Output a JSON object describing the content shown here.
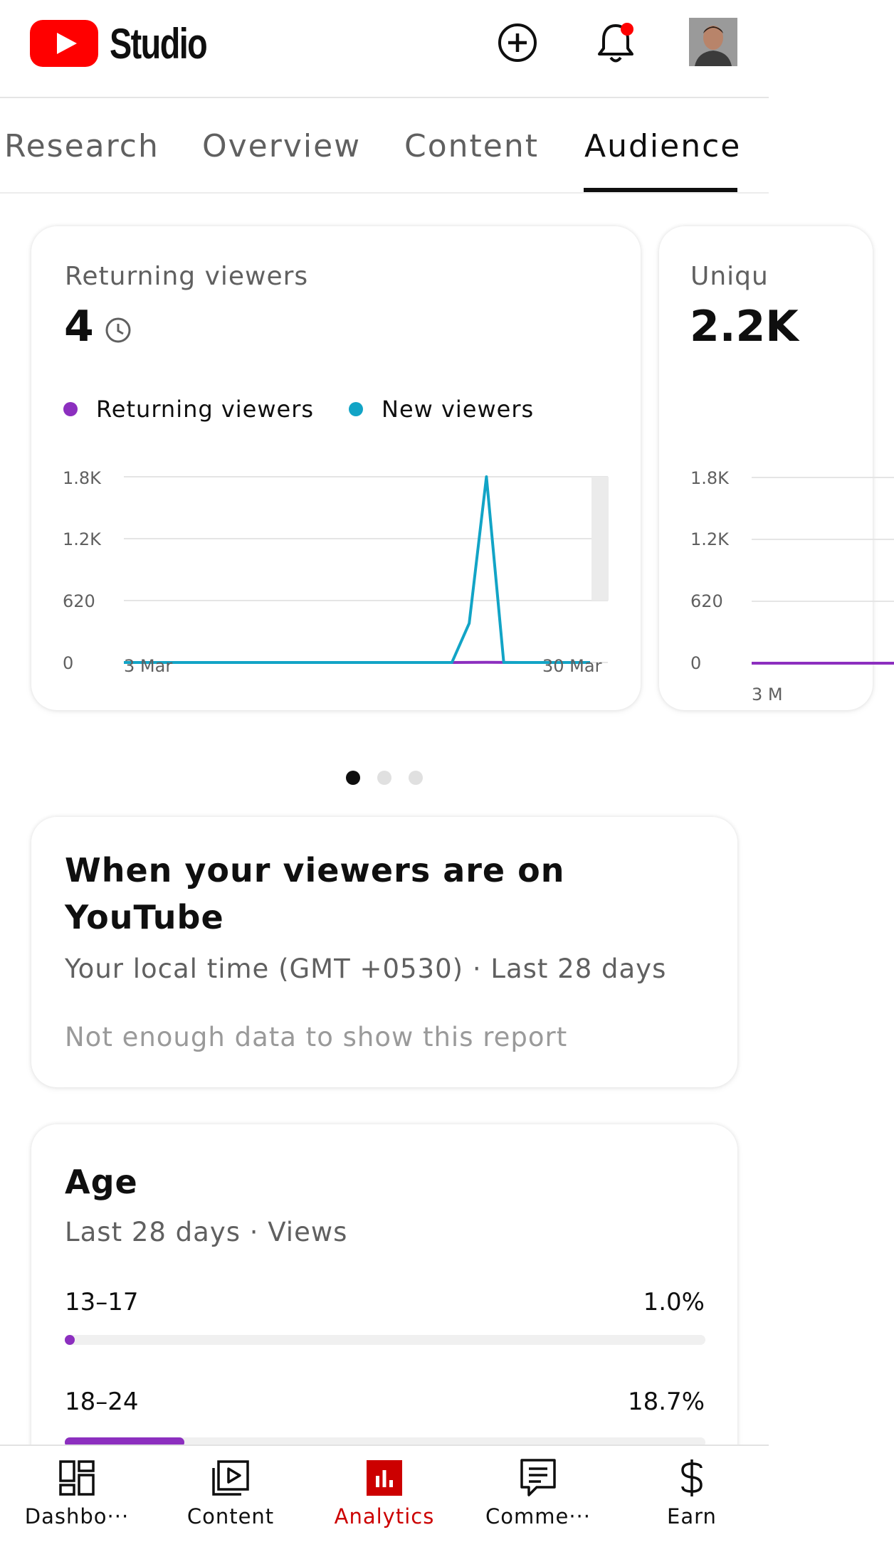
{
  "app": {
    "brand": "Studio"
  },
  "header": {
    "create_icon": "add-circle-icon",
    "notifications_icon": "bell-icon",
    "notification_dot_color": "#ff0000"
  },
  "tabs": [
    {
      "label": "Research",
      "active": false
    },
    {
      "label": "Overview",
      "active": false
    },
    {
      "label": "Content",
      "active": false
    },
    {
      "label": "Audience",
      "active": true
    }
  ],
  "viewer_card": {
    "title": "Returning viewers",
    "value": "4",
    "value_icon": "clock-icon",
    "legend": [
      {
        "label": "Returning viewers",
        "color": "#8c2fbf"
      },
      {
        "label": "New viewers",
        "color": "#12a4c6"
      }
    ],
    "chart_data": {
      "type": "line",
      "x_labels": [
        "3 Mar",
        "30 Mar"
      ],
      "y_ticks": [
        "1.8K",
        "1.2K",
        "620",
        "0"
      ],
      "ylim": [
        0,
        1800
      ],
      "series": [
        {
          "name": "New viewers",
          "color": "#12a4c6",
          "values": [
            0,
            0,
            0,
            0,
            0,
            0,
            0,
            0,
            0,
            0,
            0,
            0,
            0,
            0,
            0,
            0,
            0,
            0,
            0,
            0,
            380,
            1800,
            0,
            0,
            0,
            0,
            0,
            0
          ]
        },
        {
          "name": "Returning viewers",
          "color": "#8c2fbf",
          "values": [
            0,
            0,
            0,
            0,
            0,
            0,
            0,
            0,
            0,
            0,
            0,
            0,
            0,
            0,
            0,
            0,
            0,
            0,
            0,
            0,
            1,
            2,
            1,
            0,
            0,
            0,
            0,
            0
          ]
        }
      ]
    }
  },
  "next_card": {
    "title": "Uniqu",
    "value": "2.2K",
    "y_ticks": [
      "1.8K",
      "1.2K",
      "620",
      "0"
    ],
    "x_label": "3 M"
  },
  "pager": {
    "count": 3,
    "active_index": 0
  },
  "when_card": {
    "title": "When your viewers are on YouTube",
    "subtitle": "Your local time (GMT +0530) · Last 28 days",
    "note": "Not enough data to show this report"
  },
  "age_card": {
    "title": "Age",
    "subtitle": "Last 28 days · Views",
    "rows": [
      {
        "range": "13–17",
        "percent": "1.0%",
        "fraction": 0.01
      },
      {
        "range": "18–24",
        "percent": "18.7%",
        "fraction": 0.187
      }
    ]
  },
  "bottom_nav": [
    {
      "label": "Dashbo···",
      "icon": "dashboard-icon",
      "active": false
    },
    {
      "label": "Content",
      "icon": "video-library-icon",
      "active": false
    },
    {
      "label": "Analytics",
      "icon": "analytics-icon",
      "active": true
    },
    {
      "label": "Comme···",
      "icon": "comments-icon",
      "active": false
    },
    {
      "label": "Earn",
      "icon": "dollar-icon",
      "active": false
    }
  ],
  "colors": {
    "accent_red": "#ff0000",
    "active_nav": "#cc0000",
    "purple": "#8c2fbf",
    "teal": "#12a4c6"
  }
}
